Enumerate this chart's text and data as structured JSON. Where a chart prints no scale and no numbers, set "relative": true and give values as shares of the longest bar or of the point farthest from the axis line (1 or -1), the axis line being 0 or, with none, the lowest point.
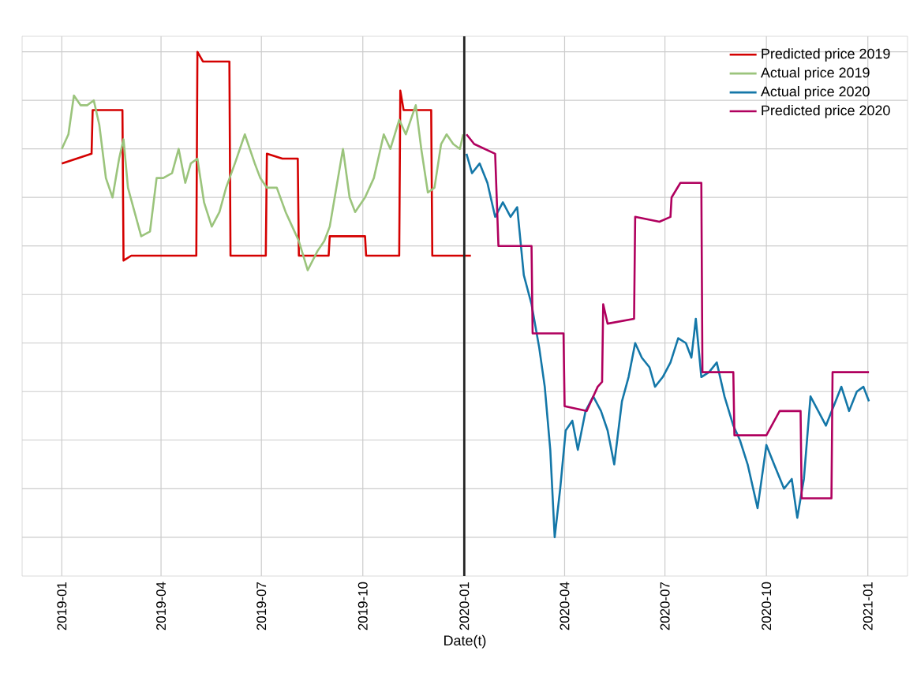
{
  "chart_data": {
    "type": "line",
    "xlabel": "Date(t)",
    "relative": true,
    "grid": true,
    "legend": "top right",
    "xlim": [
      "2018-11-26",
      "2021-02-06"
    ],
    "xticks": [
      "2019-01",
      "2019-04",
      "2019-07",
      "2019-10",
      "2020-01",
      "2020-04",
      "2020-07",
      "2020-10",
      "2021-01"
    ],
    "ref_lines": [
      {
        "axis": "x",
        "value": "2020-01-01",
        "color": "#222222"
      }
    ],
    "series": [
      {
        "name": "Predicted price 2019",
        "color": "#d40000",
        "x": [
          "2019-01-01",
          "2019-01-28",
          "2019-01-29",
          "2019-02-25",
          "2019-02-26",
          "2019-03-05",
          "2019-05-03",
          "2019-05-04",
          "2019-05-09",
          "2019-06-02",
          "2019-06-03",
          "2019-07-05",
          "2019-07-06",
          "2019-07-20",
          "2019-08-03",
          "2019-08-04",
          "2019-08-31",
          "2019-09-01",
          "2019-10-03",
          "2019-10-04",
          "2019-11-03",
          "2019-11-04",
          "2019-11-07",
          "2019-12-02",
          "2019-12-03",
          "2020-01-07"
        ],
        "values": [
          0.77,
          0.79,
          0.88,
          0.88,
          0.57,
          0.58,
          0.58,
          1.0,
          0.98,
          0.98,
          0.58,
          0.58,
          0.79,
          0.78,
          0.78,
          0.58,
          0.58,
          0.62,
          0.62,
          0.58,
          0.58,
          0.92,
          0.88,
          0.88,
          0.58,
          0.58
        ]
      },
      {
        "name": "Actual price 2019",
        "color": "#9bc47c",
        "x": [
          "2019-01-01",
          "2019-01-07",
          "2019-01-12",
          "2019-01-18",
          "2019-01-24",
          "2019-01-30",
          "2019-02-04",
          "2019-02-10",
          "2019-02-16",
          "2019-02-22",
          "2019-02-26",
          "2019-03-02",
          "2019-03-08",
          "2019-03-14",
          "2019-03-22",
          "2019-03-28",
          "2019-04-03",
          "2019-04-11",
          "2019-04-17",
          "2019-04-23",
          "2019-04-28",
          "2019-05-04",
          "2019-05-10",
          "2019-05-17",
          "2019-05-24",
          "2019-05-30",
          "2019-06-07",
          "2019-06-16",
          "2019-06-25",
          "2019-06-30",
          "2019-07-06",
          "2019-07-15",
          "2019-07-23",
          "2019-07-29",
          "2019-08-04",
          "2019-08-12",
          "2019-08-21",
          "2019-08-27",
          "2019-09-01",
          "2019-09-07",
          "2019-09-13",
          "2019-09-19",
          "2019-09-24",
          "2019-10-03",
          "2019-10-11",
          "2019-10-20",
          "2019-10-26",
          "2019-11-03",
          "2019-11-09",
          "2019-11-18",
          "2019-11-23",
          "2019-11-29",
          "2019-12-05",
          "2019-12-11",
          "2019-12-16",
          "2019-12-22",
          "2019-12-28",
          "2019-12-31"
        ],
        "values": [
          0.8,
          0.83,
          0.91,
          0.89,
          0.89,
          0.9,
          0.85,
          0.74,
          0.7,
          0.78,
          0.82,
          0.72,
          0.67,
          0.62,
          0.63,
          0.74,
          0.74,
          0.75,
          0.8,
          0.73,
          0.77,
          0.78,
          0.69,
          0.64,
          0.67,
          0.72,
          0.77,
          0.83,
          0.77,
          0.74,
          0.72,
          0.72,
          0.67,
          0.64,
          0.61,
          0.55,
          0.59,
          0.61,
          0.64,
          0.72,
          0.8,
          0.7,
          0.67,
          0.7,
          0.74,
          0.83,
          0.8,
          0.86,
          0.83,
          0.89,
          0.8,
          0.71,
          0.72,
          0.81,
          0.83,
          0.81,
          0.8,
          0.83
        ]
      },
      {
        "name": "Actual price 2020",
        "color": "#1477a8",
        "x": [
          "2020-01-03",
          "2020-01-08",
          "2020-01-15",
          "2020-01-22",
          "2020-01-29",
          "2020-02-05",
          "2020-02-12",
          "2020-02-18",
          "2020-02-24",
          "2020-03-02",
          "2020-03-09",
          "2020-03-14",
          "2020-03-19",
          "2020-03-23",
          "2020-03-28",
          "2020-04-02",
          "2020-04-08",
          "2020-04-13",
          "2020-04-20",
          "2020-04-27",
          "2020-05-04",
          "2020-05-10",
          "2020-05-16",
          "2020-05-23",
          "2020-05-29",
          "2020-06-04",
          "2020-06-10",
          "2020-06-17",
          "2020-06-22",
          "2020-06-29",
          "2020-07-06",
          "2020-07-13",
          "2020-07-20",
          "2020-07-25",
          "2020-07-29",
          "2020-08-03",
          "2020-08-10",
          "2020-08-17",
          "2020-08-24",
          "2020-09-01",
          "2020-09-07",
          "2020-09-14",
          "2020-09-23",
          "2020-10-01",
          "2020-10-08",
          "2020-10-17",
          "2020-10-24",
          "2020-10-29",
          "2020-11-04",
          "2020-11-10",
          "2020-11-17",
          "2020-11-24",
          "2020-12-01",
          "2020-12-08",
          "2020-12-15",
          "2020-12-22",
          "2020-12-28",
          "2021-01-02"
        ],
        "values": [
          0.79,
          0.75,
          0.77,
          0.73,
          0.66,
          0.69,
          0.66,
          0.68,
          0.54,
          0.48,
          0.39,
          0.31,
          0.18,
          0.0,
          0.1,
          0.22,
          0.24,
          0.18,
          0.26,
          0.29,
          0.26,
          0.22,
          0.15,
          0.28,
          0.33,
          0.4,
          0.37,
          0.35,
          0.31,
          0.33,
          0.36,
          0.41,
          0.4,
          0.37,
          0.45,
          0.33,
          0.34,
          0.36,
          0.29,
          0.23,
          0.2,
          0.15,
          0.06,
          0.19,
          0.15,
          0.1,
          0.12,
          0.04,
          0.12,
          0.29,
          0.26,
          0.23,
          0.27,
          0.31,
          0.26,
          0.3,
          0.31,
          0.28
        ]
      },
      {
        "name": "Predicted price 2020",
        "color": "#b0005e",
        "x": [
          "2020-01-03",
          "2020-01-10",
          "2020-01-29",
          "2020-02-01",
          "2020-03-02",
          "2020-03-03",
          "2020-03-31",
          "2020-04-01",
          "2020-04-21",
          "2020-05-01",
          "2020-05-05",
          "2020-05-06",
          "2020-05-10",
          "2020-06-03",
          "2020-06-04",
          "2020-06-26",
          "2020-07-06",
          "2020-07-07",
          "2020-07-15",
          "2020-08-03",
          "2020-08-04",
          "2020-09-01",
          "2020-09-02",
          "2020-10-01",
          "2020-10-13",
          "2020-11-01",
          "2020-11-02",
          "2020-11-29",
          "2020-11-30",
          "2021-01-02"
        ],
        "values": [
          0.83,
          0.81,
          0.79,
          0.6,
          0.6,
          0.42,
          0.42,
          0.27,
          0.26,
          0.31,
          0.32,
          0.48,
          0.44,
          0.45,
          0.66,
          0.65,
          0.66,
          0.7,
          0.73,
          0.73,
          0.34,
          0.34,
          0.21,
          0.21,
          0.26,
          0.26,
          0.08,
          0.08,
          0.34,
          0.34
        ]
      }
    ]
  }
}
